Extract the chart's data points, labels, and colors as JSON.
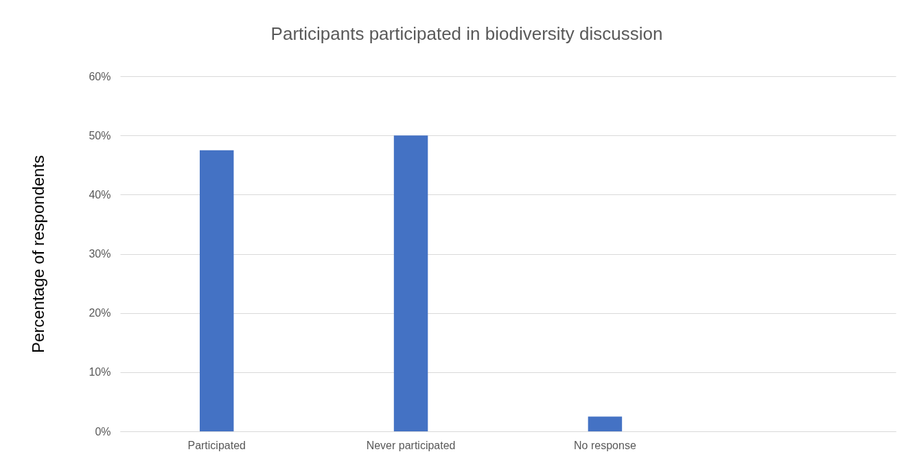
{
  "chart_data": {
    "type": "bar",
    "title": "Participants participated in biodiversity discussion",
    "ylabel": "Percentage of respondents",
    "categories": [
      "Participated",
      "Never participated",
      "No response",
      null
    ],
    "values": [
      47.5,
      50,
      2.5,
      null
    ],
    "color": "#4472c4",
    "ylim": [
      0,
      60
    ],
    "yticks": [
      {
        "value": 0,
        "label": "0%"
      },
      {
        "value": 10,
        "label": "10%"
      },
      {
        "value": 20,
        "label": "20%"
      },
      {
        "value": 30,
        "label": "30%"
      },
      {
        "value": 40,
        "label": "40%"
      },
      {
        "value": 50,
        "label": "50%"
      },
      {
        "value": 60,
        "label": "60%"
      }
    ],
    "grid": "y"
  }
}
